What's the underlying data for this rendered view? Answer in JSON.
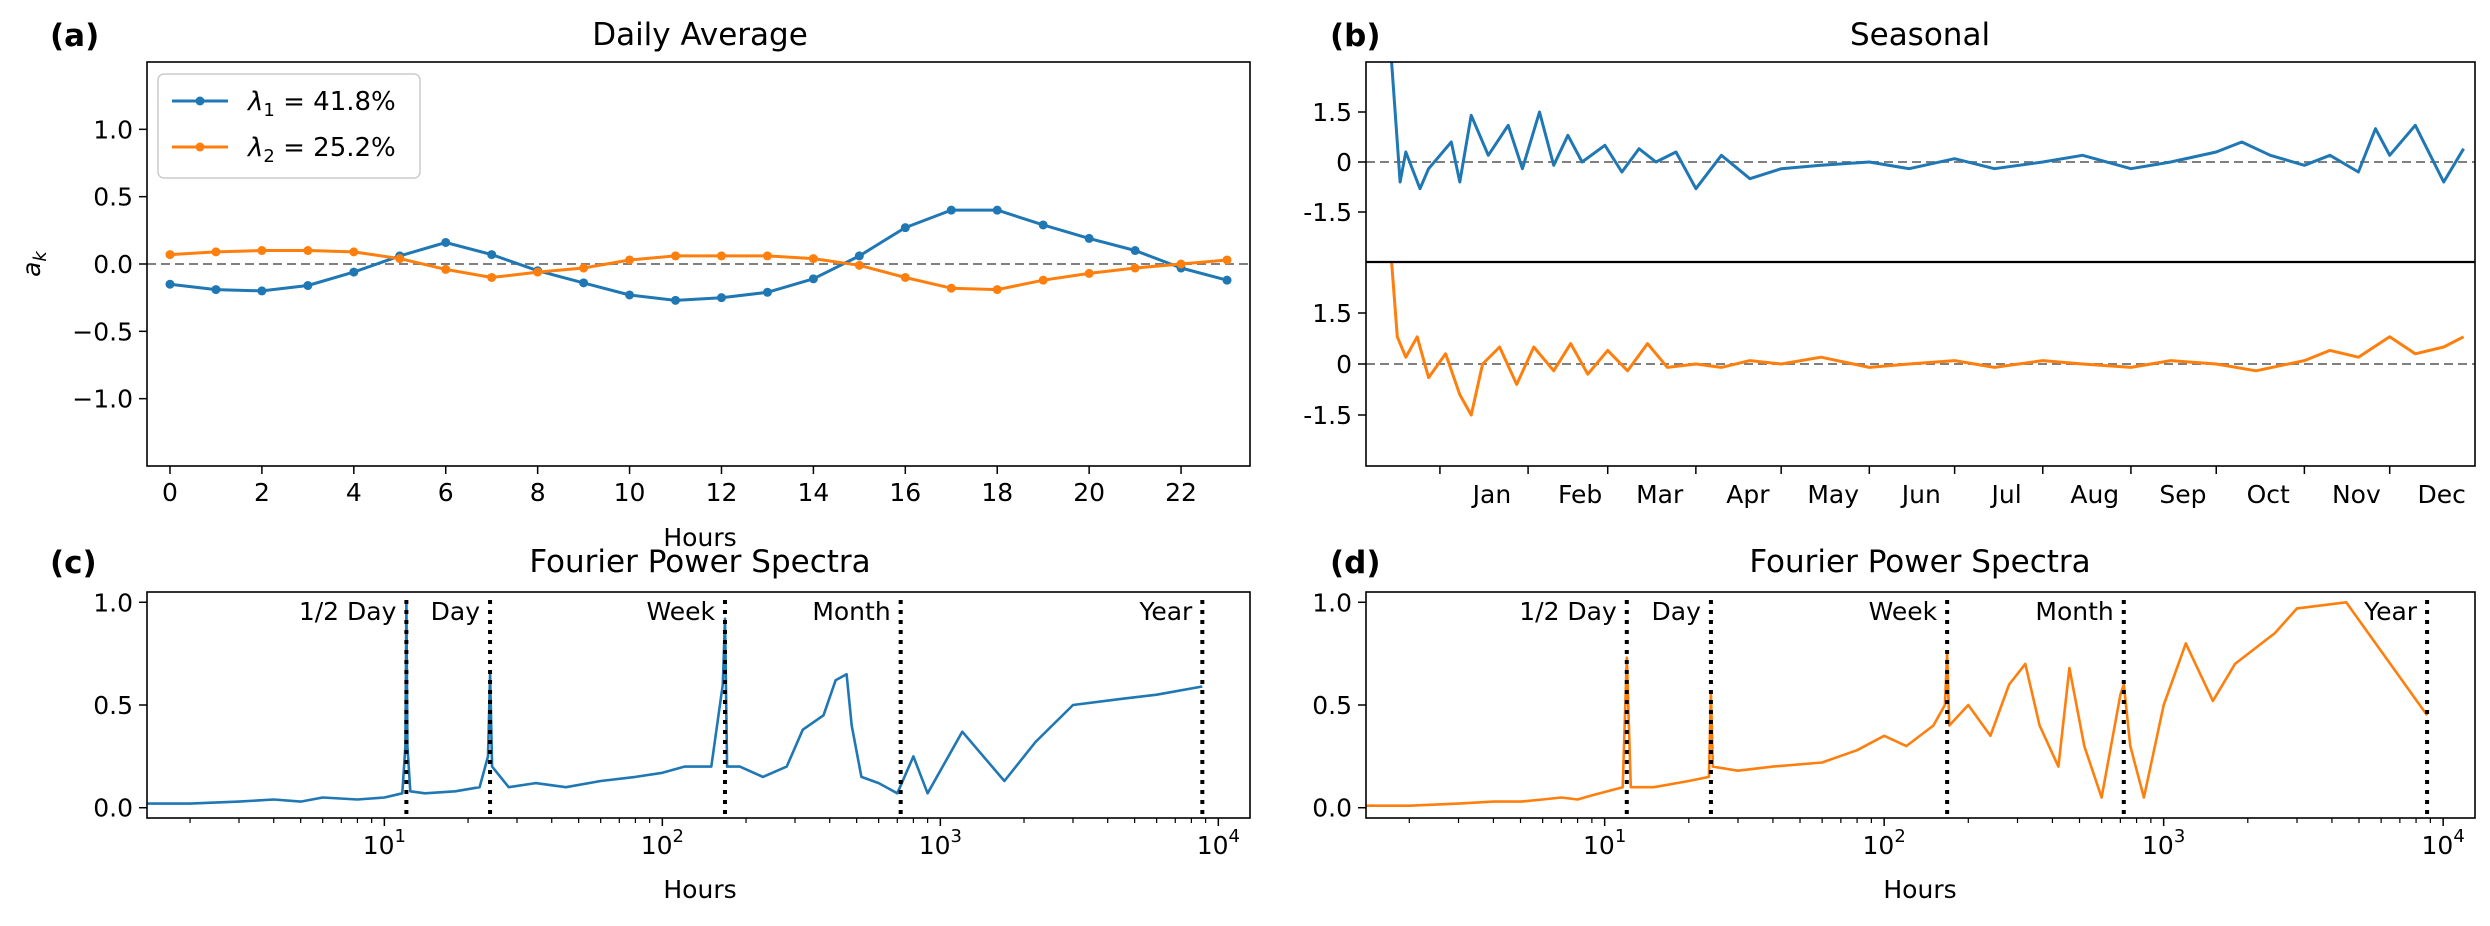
{
  "panels": {
    "a": {
      "label": "(a)",
      "title": "Daily Average",
      "xlabel": "Hours",
      "ylabel": "a_k"
    },
    "b": {
      "label": "(b)",
      "title": "Seasonal"
    },
    "c": {
      "label": "(c)",
      "title": "Fourier Power Spectra",
      "xlabel": "Hours"
    },
    "d": {
      "label": "(d)",
      "title": "Fourier Power Spectra",
      "xlabel": "Hours"
    }
  },
  "legend": {
    "entries": [
      {
        "base": "λ",
        "sub": "1",
        "rest": " = 41.8%",
        "color": "#1f77b4"
      },
      {
        "base": "λ",
        "sub": "2",
        "rest": " = 25.2%",
        "color": "#ff7f0e"
      }
    ]
  },
  "colors": {
    "series1": "#1f77b4",
    "series2": "#ff7f0e",
    "zero_line": "#808080",
    "marker_line": "#000000"
  },
  "chart_data": [
    {
      "panel": "a",
      "type": "line",
      "title": "Daily Average",
      "xlabel": "Hours",
      "ylabel": "a_k",
      "xlim": [
        -0.5,
        23.5
      ],
      "ylim": [
        -1.5,
        1.5
      ],
      "xticks": [
        0,
        2,
        4,
        6,
        8,
        10,
        12,
        14,
        16,
        18,
        20,
        22
      ],
      "yticks": [
        1.0,
        0.5,
        0.0,
        -0.5,
        -1.0
      ],
      "ytick_labels": [
        "1.0",
        "0.5",
        "0.0",
        "−0.5",
        "−1.0"
      ],
      "zero_line": "dashed",
      "legend_position": "upper-left",
      "x": [
        0,
        1,
        2,
        3,
        4,
        5,
        6,
        7,
        8,
        9,
        10,
        11,
        12,
        13,
        14,
        15,
        16,
        17,
        18,
        19,
        20,
        21,
        22,
        23
      ],
      "series": [
        {
          "name": "λ1 = 41.8%",
          "color": "#1f77b4",
          "values": [
            -0.15,
            -0.19,
            -0.2,
            -0.16,
            -0.06,
            0.06,
            0.16,
            0.07,
            -0.05,
            -0.14,
            -0.23,
            -0.27,
            -0.25,
            -0.21,
            -0.11,
            0.06,
            0.27,
            0.4,
            0.4,
            0.29,
            0.19,
            0.1,
            -0.03,
            -0.12
          ]
        },
        {
          "name": "λ2 = 25.2%",
          "color": "#ff7f0e",
          "values": [
            0.07,
            0.09,
            0.1,
            0.1,
            0.09,
            0.04,
            -0.04,
            -0.1,
            -0.06,
            -0.03,
            0.03,
            0.06,
            0.06,
            0.06,
            0.04,
            -0.01,
            -0.1,
            -0.18,
            -0.19,
            -0.12,
            -0.07,
            -0.03,
            0.0,
            0.03
          ]
        }
      ]
    },
    {
      "panel": "b",
      "type": "line",
      "title": "Seasonal",
      "x_is_date": true,
      "xlim": [
        "2018-12-06",
        "2019-12-31"
      ],
      "xticks": [
        "Jan",
        "Feb",
        "Mar",
        "Apr",
        "May",
        "Jun",
        "Jul",
        "Aug",
        "Sep",
        "Oct",
        "Nov",
        "Dec"
      ],
      "xtick_dates": [
        "2019-01-01",
        "2019-02-01",
        "2019-03-01",
        "2019-04-01",
        "2019-05-01",
        "2019-06-01",
        "2019-07-01",
        "2019-08-01",
        "2019-09-01",
        "2019-10-01",
        "2019-11-01",
        "2019-12-01"
      ],
      "subplots": [
        {
          "name": "λ1 = 41.8%",
          "color": "#1f77b4",
          "ylim": [
            -3,
            3
          ],
          "yticks": [
            "1.5",
            "0",
            "-1.5"
          ],
          "ytick_values": [
            1.5,
            0,
            -1.5
          ],
          "x": [
            "2018-12-15",
            "2018-12-18",
            "2018-12-20",
            "2018-12-25",
            "2018-12-28",
            "2019-01-05",
            "2019-01-08",
            "2019-01-12",
            "2019-01-18",
            "2019-01-25",
            "2019-01-30",
            "2019-02-05",
            "2019-02-10",
            "2019-02-15",
            "2019-02-20",
            "2019-02-28",
            "2019-03-06",
            "2019-03-12",
            "2019-03-18",
            "2019-03-25",
            "2019-04-01",
            "2019-04-10",
            "2019-04-20",
            "2019-05-01",
            "2019-05-15",
            "2019-06-01",
            "2019-06-15",
            "2019-07-01",
            "2019-07-15",
            "2019-08-01",
            "2019-08-15",
            "2019-09-01",
            "2019-09-15",
            "2019-10-01",
            "2019-10-10",
            "2019-10-20",
            "2019-11-01",
            "2019-11-10",
            "2019-11-20",
            "2019-11-26",
            "2019-12-01",
            "2019-12-10",
            "2019-12-20",
            "2019-12-27"
          ],
          "values": [
            3.0,
            -0.6,
            0.3,
            -0.8,
            -0.2,
            0.6,
            -0.6,
            1.4,
            0.2,
            1.1,
            -0.2,
            1.5,
            -0.1,
            0.8,
            0.0,
            0.5,
            -0.3,
            0.4,
            0.0,
            0.3,
            -0.8,
            0.2,
            -0.5,
            -0.2,
            -0.1,
            0.0,
            -0.2,
            0.1,
            -0.2,
            0.0,
            0.2,
            -0.2,
            0.0,
            0.3,
            0.6,
            0.2,
            -0.1,
            0.2,
            -0.3,
            1.0,
            0.2,
            1.1,
            -0.6,
            0.4
          ]
        },
        {
          "name": "λ2 = 25.2%",
          "color": "#ff7f0e",
          "ylim": [
            -3,
            3
          ],
          "yticks": [
            "1.5",
            "0",
            "-1.5"
          ],
          "ytick_values": [
            1.5,
            0,
            -1.5
          ],
          "x": [
            "2018-12-15",
            "2018-12-17",
            "2018-12-20",
            "2018-12-24",
            "2018-12-28",
            "2019-01-03",
            "2019-01-08",
            "2019-01-12",
            "2019-01-16",
            "2019-01-22",
            "2019-01-28",
            "2019-02-03",
            "2019-02-10",
            "2019-02-16",
            "2019-02-22",
            "2019-03-01",
            "2019-03-08",
            "2019-03-15",
            "2019-03-22",
            "2019-04-01",
            "2019-04-10",
            "2019-04-20",
            "2019-05-01",
            "2019-05-15",
            "2019-06-01",
            "2019-06-15",
            "2019-07-01",
            "2019-07-15",
            "2019-08-01",
            "2019-08-15",
            "2019-09-01",
            "2019-09-15",
            "2019-10-01",
            "2019-10-15",
            "2019-11-01",
            "2019-11-10",
            "2019-11-20",
            "2019-12-01",
            "2019-12-10",
            "2019-12-20",
            "2019-12-27"
          ],
          "values": [
            3.0,
            0.8,
            0.2,
            0.8,
            -0.4,
            0.3,
            -0.9,
            -1.5,
            0.0,
            0.5,
            -0.6,
            0.5,
            -0.2,
            0.6,
            -0.3,
            0.4,
            -0.2,
            0.6,
            -0.1,
            0.0,
            -0.1,
            0.1,
            0.0,
            0.2,
            -0.1,
            0.0,
            0.1,
            -0.1,
            0.1,
            0.0,
            -0.1,
            0.1,
            0.0,
            -0.2,
            0.1,
            0.4,
            0.2,
            0.8,
            0.3,
            0.5,
            0.8
          ]
        }
      ]
    },
    {
      "panel": "c",
      "type": "line",
      "title": "Fourier Power Spectra",
      "xlabel": "Hours",
      "xscale": "log",
      "xlim": [
        1.4,
        13000
      ],
      "ylim": [
        -0.05,
        1.05
      ],
      "yticks": [
        1.0,
        0.5,
        0.0
      ],
      "ytick_labels": [
        "1.0",
        "0.5",
        "0.0"
      ],
      "xticks": [
        10,
        100,
        1000,
        10000
      ],
      "xtick_labels": [
        {
          "base": "10",
          "exp": "1"
        },
        {
          "base": "10",
          "exp": "2"
        },
        {
          "base": "10",
          "exp": "3"
        },
        {
          "base": "10",
          "exp": "4"
        }
      ],
      "markers": [
        {
          "label": "1/2 Day",
          "x": 12
        },
        {
          "label": "Day",
          "x": 24
        },
        {
          "label": "Week",
          "x": 168
        },
        {
          "label": "Month",
          "x": 720
        },
        {
          "label": "Year",
          "x": 8760
        }
      ],
      "series": [
        {
          "color": "#1f77b4",
          "x": [
            1.4,
            2,
            3,
            4,
            5,
            6,
            8,
            10,
            11.6,
            11.9,
            12,
            12.1,
            12.4,
            14,
            18,
            22,
            23.6,
            24,
            24.4,
            28,
            35,
            45,
            60,
            80,
            100,
            120,
            150,
            165,
            168,
            171,
            190,
            230,
            280,
            320,
            380,
            420,
            460,
            480,
            520,
            600,
            700,
            800,
            900,
            1200,
            1700,
            2200,
            3000,
            4500,
            6000,
            8760
          ],
          "values": [
            0.02,
            0.02,
            0.03,
            0.04,
            0.03,
            0.05,
            0.04,
            0.05,
            0.07,
            0.3,
            1.0,
            0.3,
            0.08,
            0.07,
            0.08,
            0.1,
            0.25,
            0.65,
            0.2,
            0.1,
            0.12,
            0.1,
            0.13,
            0.15,
            0.17,
            0.2,
            0.2,
            0.6,
            0.92,
            0.2,
            0.2,
            0.15,
            0.2,
            0.38,
            0.45,
            0.62,
            0.65,
            0.4,
            0.15,
            0.12,
            0.07,
            0.25,
            0.07,
            0.37,
            0.13,
            0.32,
            0.5,
            0.53,
            0.55,
            0.59
          ]
        }
      ]
    },
    {
      "panel": "d",
      "type": "line",
      "title": "Fourier Power Spectra",
      "xlabel": "Hours",
      "xscale": "log",
      "xlim": [
        1.4,
        13000
      ],
      "ylim": [
        -0.05,
        1.05
      ],
      "yticks": [
        1.0,
        0.5,
        0.0
      ],
      "ytick_labels": [
        "1.0",
        "0.5",
        "0.0"
      ],
      "xticks": [
        10,
        100,
        1000,
        10000
      ],
      "xtick_labels": [
        {
          "base": "10",
          "exp": "1"
        },
        {
          "base": "10",
          "exp": "2"
        },
        {
          "base": "10",
          "exp": "3"
        },
        {
          "base": "10",
          "exp": "4"
        }
      ],
      "markers": [
        {
          "label": "1/2 Day",
          "x": 12
        },
        {
          "label": "Day",
          "x": 24
        },
        {
          "label": "Week",
          "x": 168
        },
        {
          "label": "Month",
          "x": 720
        },
        {
          "label": "Year",
          "x": 8760
        }
      ],
      "series": [
        {
          "color": "#ff7f0e",
          "x": [
            1.4,
            2,
            3,
            4,
            5,
            6,
            7,
            8,
            9,
            11.6,
            12,
            12.4,
            15,
            20,
            23.6,
            24,
            24.4,
            30,
            40,
            60,
            80,
            100,
            120,
            150,
            165,
            168,
            171,
            200,
            240,
            280,
            320,
            360,
            420,
            460,
            520,
            600,
            700,
            720,
            760,
            850,
            1000,
            1200,
            1500,
            1800,
            2500,
            3000,
            4500,
            8760
          ],
          "values": [
            0.01,
            0.01,
            0.02,
            0.03,
            0.03,
            0.04,
            0.05,
            0.04,
            0.06,
            0.1,
            0.73,
            0.1,
            0.1,
            0.13,
            0.15,
            0.56,
            0.2,
            0.18,
            0.2,
            0.22,
            0.28,
            0.35,
            0.3,
            0.4,
            0.5,
            0.75,
            0.4,
            0.5,
            0.35,
            0.6,
            0.7,
            0.4,
            0.2,
            0.68,
            0.3,
            0.05,
            0.55,
            0.6,
            0.3,
            0.05,
            0.5,
            0.8,
            0.52,
            0.7,
            0.85,
            0.97,
            1.0,
            0.45
          ]
        }
      ]
    }
  ]
}
